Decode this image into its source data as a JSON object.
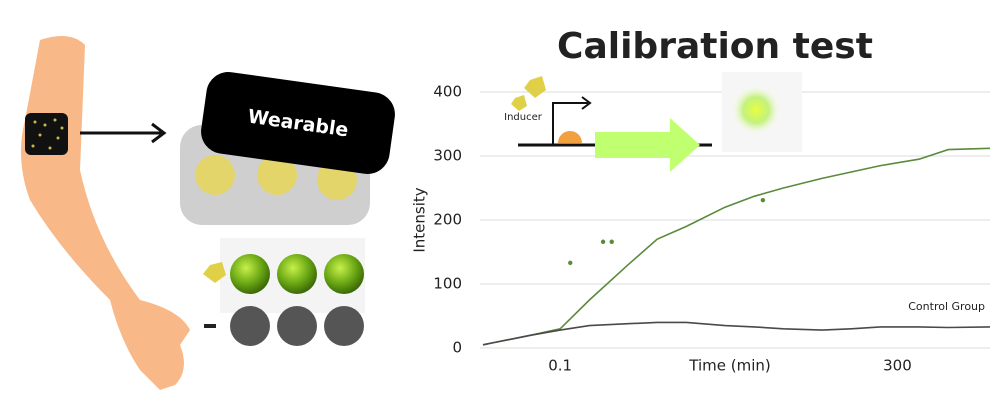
{
  "chart_data": {
    "type": "line",
    "title": "Calibration test",
    "xlabel": "Time (min)",
    "ylabel": "Intensity",
    "xscale": "log",
    "x": [
      0.016,
      0.02,
      0.05,
      0.1,
      0.2,
      0.5,
      1,
      2,
      5,
      10,
      20,
      50,
      100,
      200,
      500,
      1000,
      2700
    ],
    "series": [
      {
        "color": "#5a8a3c",
        "values": [
          5,
          8,
          20,
          30,
          75,
          130,
          170,
          190,
          220,
          237,
          250,
          265,
          275,
          285,
          295,
          310,
          312
        ]
      },
      {
        "name": "Control Group",
        "color": "#4a4a4a",
        "values": [
          5,
          8,
          20,
          28,
          35,
          38,
          40,
          40,
          35,
          33,
          30,
          28,
          30,
          33,
          33,
          32,
          33
        ]
      }
    ],
    "outliers": {
      "color": "#5a8a3c",
      "x": [
        0.127,
        0.277,
        0.34,
        12.3
      ],
      "values": [
        133,
        166,
        166,
        231
      ]
    },
    "xlim": [
      0.016,
      2700
    ],
    "ylim": [
      0,
      400
    ],
    "xticks": [
      0.1,
      300
    ],
    "yticks": [
      0,
      100,
      200,
      300,
      400
    ],
    "grid": true,
    "annotations": {
      "wearable": "Wearable",
      "inducer": "Inducer"
    }
  }
}
